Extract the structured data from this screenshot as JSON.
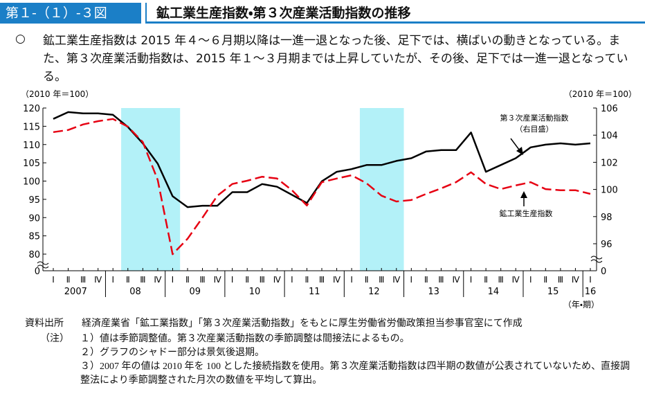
{
  "header": {
    "figure_number": "第１-（１）-３図",
    "title": "鉱工業生産指数・第３次産業活動指数の推移"
  },
  "summary": {
    "bullet": "○",
    "text": "鉱工業生産指数は 2015 年４～６月期以降は一進一退となった後、足下では、横ばいの動きとなっている。また、第３次産業活動指数は、2015 年１～３月期までは上昇していたが、その後、足下では一進一退となっている。"
  },
  "chart_data": {
    "type": "line",
    "y_label": "（2010 年＝100）",
    "y2_label": "（2010 年＝100）",
    "x_label": "（年・期）",
    "categories": [
      "Ⅰ",
      "Ⅱ",
      "Ⅲ",
      "Ⅳ",
      "Ⅰ",
      "Ⅱ",
      "Ⅲ",
      "Ⅳ",
      "Ⅰ",
      "Ⅱ",
      "Ⅲ",
      "Ⅳ",
      "Ⅰ",
      "Ⅱ",
      "Ⅲ",
      "Ⅳ",
      "Ⅰ",
      "Ⅱ",
      "Ⅲ",
      "Ⅳ",
      "Ⅰ",
      "Ⅱ",
      "Ⅲ",
      "Ⅳ",
      "Ⅰ",
      "Ⅱ",
      "Ⅲ",
      "Ⅳ",
      "Ⅰ",
      "Ⅱ",
      "Ⅲ",
      "Ⅳ",
      "Ⅰ",
      "Ⅱ",
      "Ⅲ",
      "Ⅳ",
      "Ⅰ"
    ],
    "year_labels": [
      {
        "label": "2007",
        "start": 0,
        "span": 4
      },
      {
        "label": "08",
        "start": 4,
        "span": 4
      },
      {
        "label": "09",
        "start": 8,
        "span": 4
      },
      {
        "label": "10",
        "start": 12,
        "span": 4
      },
      {
        "label": "11",
        "start": 16,
        "span": 4
      },
      {
        "label": "12",
        "start": 20,
        "span": 4
      },
      {
        "label": "13",
        "start": 24,
        "span": 4
      },
      {
        "label": "14",
        "start": 28,
        "span": 4
      },
      {
        "label": "15",
        "start": 32,
        "span": 4
      },
      {
        "label": "16",
        "start": 36,
        "span": 1
      }
    ],
    "shaded": [
      {
        "from": 4.55,
        "to": 8.5
      },
      {
        "from": 20.55,
        "to": 23.5
      }
    ],
    "shade_color": "#b3f1f8",
    "ylim": [
      0,
      120
    ],
    "ybreak": 80,
    "yticks": [
      0,
      80,
      85,
      90,
      95,
      100,
      105,
      110,
      115,
      120
    ],
    "y2lim": [
      0,
      106
    ],
    "y2break": 96,
    "y2ticks": [
      0,
      96,
      98,
      100,
      102,
      104,
      106
    ],
    "series": [
      {
        "name": "第３次産業活動指数",
        "name_note": "（右目盛）",
        "color": "#000000",
        "axis": "y2",
        "dashed": false,
        "values": [
          105.2,
          105.7,
          105.6,
          105.6,
          105.5,
          104.6,
          103.4,
          101.9,
          99.5,
          98.7,
          98.8,
          98.8,
          99.8,
          99.8,
          100.4,
          100.2,
          99.6,
          99.0,
          100.6,
          101.3,
          101.5,
          101.8,
          101.8,
          102.1,
          102.3,
          102.8,
          102.9,
          102.9,
          104.2,
          101.3,
          101.8,
          102.3,
          103.1,
          103.3,
          103.4,
          103.3,
          103.4
        ]
      },
      {
        "name": "鉱工業生産指数",
        "color": "#e60012",
        "axis": "y",
        "dashed": true,
        "values": [
          113.4,
          114.0,
          115.5,
          116.4,
          117.0,
          114.9,
          110.7,
          100.3,
          79.5,
          84.2,
          90.0,
          96.0,
          99.2,
          100.1,
          101.2,
          100.7,
          97.5,
          93.3,
          99.7,
          100.7,
          101.6,
          99.4,
          96.0,
          94.4,
          94.8,
          96.5,
          98.0,
          99.7,
          102.4,
          99.2,
          97.8,
          98.8,
          99.7,
          97.8,
          97.5,
          97.5,
          96.5
        ]
      }
    ]
  },
  "source": {
    "label": "資料出所",
    "text": "経済産業省「鉱工業指数」「第３次産業活動指数」をもとに厚生労働省労働政策担当参事官室にて作成"
  },
  "notes": {
    "label": "（注）",
    "items": [
      "１）値は季節調整値。第３次産業活動指数の季節調整は間接法によるもの。",
      "２）グラフのシャドー部分は景気後退期。",
      "３）2007 年の値は 2010 年を 100 とした接続指数を使用。第３次産業活動指数は四半期の数値が公表されていないため、直接調整法により季節調整された月次の数値を平均して算出。"
    ]
  }
}
